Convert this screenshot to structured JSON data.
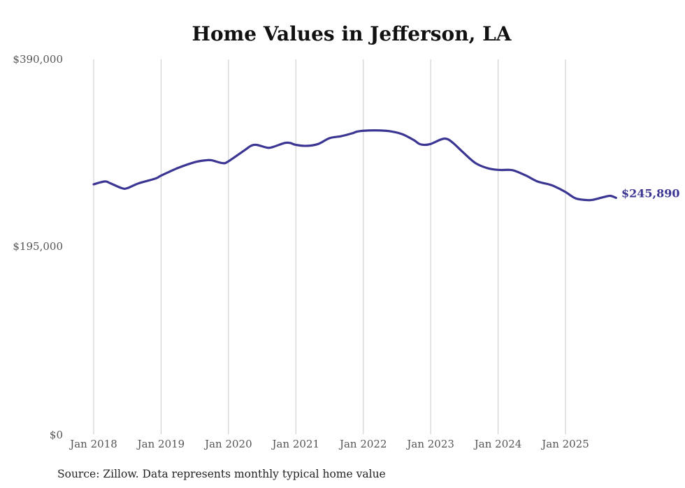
{
  "chart_data": {
    "type": "line",
    "title": "Home Values in Jefferson, LA",
    "xlabel": "",
    "ylabel": "",
    "ylim": [
      0,
      390000
    ],
    "yticks": [
      0,
      195000,
      390000
    ],
    "ytick_labels": [
      "$0",
      "$195,000",
      "$390,000"
    ],
    "xtick_labels": [
      "Jan 2018",
      "Jan 2019",
      "Jan 2020",
      "Jan 2021",
      "Jan 2022",
      "Jan 2023",
      "Jan 2024",
      "Jan 2025"
    ],
    "xtick_months": [
      0,
      12,
      24,
      36,
      48,
      60,
      72,
      84
    ],
    "grid": "vertical",
    "legend": "none",
    "series": [
      {
        "name": "Typical home value",
        "color": "#3b3593",
        "points": [
          {
            "m": 0,
            "v": 260000
          },
          {
            "m": 2,
            "v": 263000
          },
          {
            "m": 3,
            "v": 261000
          },
          {
            "m": 5,
            "v": 256000
          },
          {
            "m": 6,
            "v": 256000
          },
          {
            "m": 8,
            "v": 261000
          },
          {
            "m": 11,
            "v": 266000
          },
          {
            "m": 12,
            "v": 269000
          },
          {
            "m": 15,
            "v": 277000
          },
          {
            "m": 18,
            "v": 283000
          },
          {
            "m": 20,
            "v": 285000
          },
          {
            "m": 21,
            "v": 285000
          },
          {
            "m": 23,
            "v": 282000
          },
          {
            "m": 24,
            "v": 284000
          },
          {
            "m": 27,
            "v": 296000
          },
          {
            "m": 28,
            "v": 300000
          },
          {
            "m": 29,
            "v": 301000
          },
          {
            "m": 31,
            "v": 298000
          },
          {
            "m": 32,
            "v": 299000
          },
          {
            "m": 34,
            "v": 303000
          },
          {
            "m": 35,
            "v": 303000
          },
          {
            "m": 36,
            "v": 301000
          },
          {
            "m": 38,
            "v": 300000
          },
          {
            "m": 40,
            "v": 302000
          },
          {
            "m": 42,
            "v": 308000
          },
          {
            "m": 44,
            "v": 310000
          },
          {
            "m": 46,
            "v": 313000
          },
          {
            "m": 47,
            "v": 315000
          },
          {
            "m": 49,
            "v": 316000
          },
          {
            "m": 51,
            "v": 316000
          },
          {
            "m": 53,
            "v": 315000
          },
          {
            "m": 55,
            "v": 312000
          },
          {
            "m": 57,
            "v": 306000
          },
          {
            "m": 58,
            "v": 302000
          },
          {
            "m": 59,
            "v": 301000
          },
          {
            "m": 60,
            "v": 302000
          },
          {
            "m": 62,
            "v": 307000
          },
          {
            "m": 63,
            "v": 307000
          },
          {
            "m": 64,
            "v": 303000
          },
          {
            "m": 66,
            "v": 292000
          },
          {
            "m": 68,
            "v": 282000
          },
          {
            "m": 70,
            "v": 277000
          },
          {
            "m": 72,
            "v": 275000
          },
          {
            "m": 74,
            "v": 275000
          },
          {
            "m": 75,
            "v": 274000
          },
          {
            "m": 77,
            "v": 269000
          },
          {
            "m": 79,
            "v": 263000
          },
          {
            "m": 81,
            "v": 260000
          },
          {
            "m": 82,
            "v": 258000
          },
          {
            "m": 84,
            "v": 252000
          },
          {
            "m": 85,
            "v": 248000
          },
          {
            "m": 86,
            "v": 245000
          },
          {
            "m": 88,
            "v": 243500
          },
          {
            "m": 89,
            "v": 244000
          },
          {
            "m": 91,
            "v": 247000
          },
          {
            "m": 92,
            "v": 248000
          },
          {
            "m": 93,
            "v": 245890
          }
        ]
      }
    ],
    "end_label": "$245,890",
    "source": "Source: Zillow. Data represents monthly typical home value"
  }
}
